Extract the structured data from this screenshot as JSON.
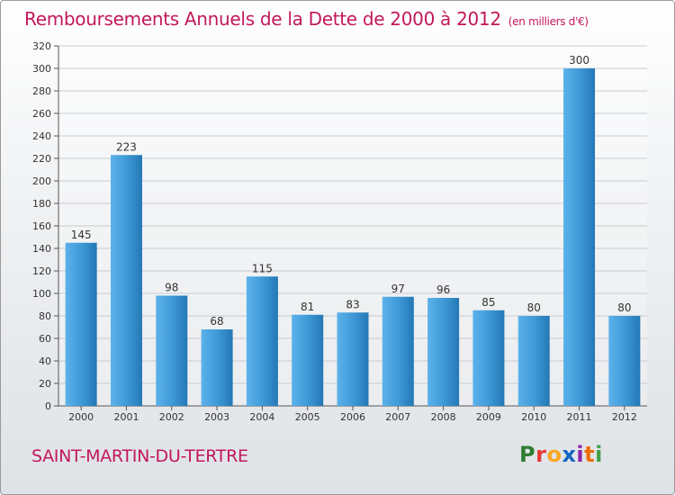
{
  "header": {
    "title": "Remboursements Annuels de la Dette de 2000 à 2012",
    "unit": "(en milliers d'€)"
  },
  "footer": {
    "commune": "SAINT-MARTIN-DU-TERTRE",
    "logo_text": "Proxiti",
    "logo_colors": [
      "#2e7d32",
      "#e53935",
      "#f9a825",
      "#1565c0",
      "#8e24aa",
      "#ef6c00",
      "#43a047"
    ]
  },
  "colors": {
    "bar": "#3f9ad8",
    "bar_light": "#5cb2ea",
    "bar_dark": "#2478b5",
    "title": "#c2185b",
    "grid": "#c8cbd0"
  },
  "chart_data": {
    "type": "bar",
    "title": "Remboursements Annuels de la Dette de 2000 à 2012",
    "subtitle": "(en milliers d'€)",
    "xlabel": "",
    "ylabel": "",
    "categories": [
      "2000",
      "2001",
      "2002",
      "2003",
      "2004",
      "2005",
      "2006",
      "2007",
      "2008",
      "2009",
      "2010",
      "2011",
      "2012"
    ],
    "values": [
      145,
      223,
      98,
      68,
      115,
      81,
      83,
      97,
      96,
      85,
      80,
      300,
      80
    ],
    "ylim": [
      0,
      320
    ],
    "yticks": [
      0,
      20,
      40,
      60,
      80,
      100,
      120,
      140,
      160,
      180,
      200,
      220,
      240,
      260,
      280,
      300,
      320
    ],
    "grid": true,
    "legend": "none"
  }
}
